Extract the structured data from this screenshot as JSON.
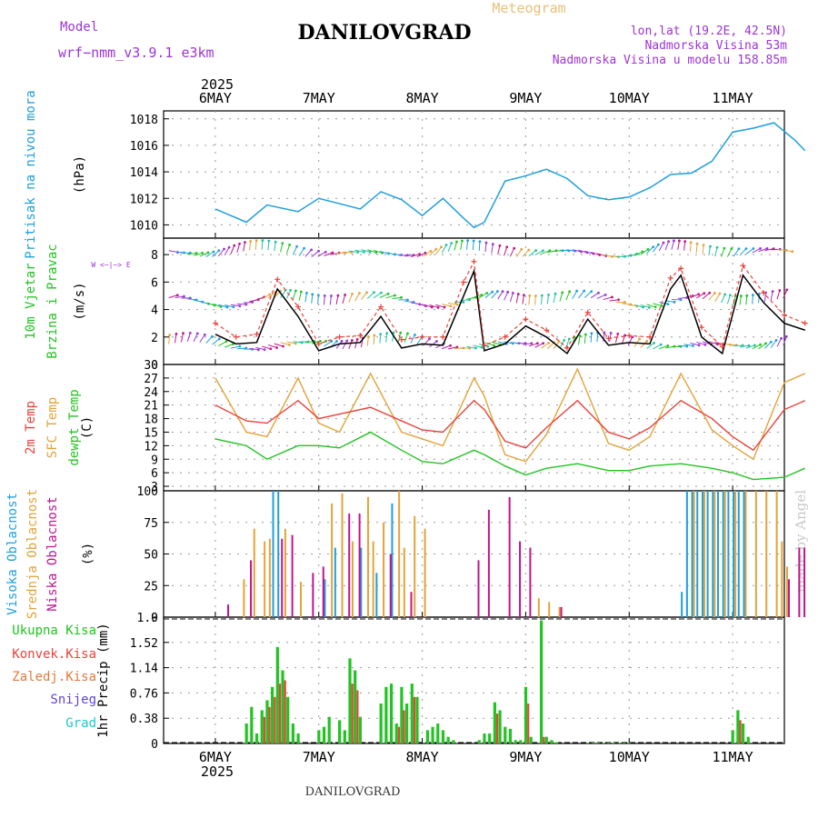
{
  "header": {
    "model_label": "Model",
    "model_name": "wrf−nmm_v3.9.1  e3km",
    "title": "DANILOVGRAD",
    "subtitle": "Meteogram",
    "coords": "lon,lat (19.2E, 42.5N)",
    "altitude": "Nadmorska Visina 53m",
    "model_altitude": "Nadmorska Visina u modelu 158.85m",
    "footer_title": "DANILOVGRAD",
    "watermark": "made by Angel"
  },
  "colors": {
    "blue": "#1e9fdc",
    "red": "#e8433c",
    "orange": "#e2a33a",
    "green": "#22c322",
    "magenta": "#c0148c",
    "purple": "#9c34d6",
    "black": "#000000"
  },
  "chart_data": [
    {
      "type": "line",
      "id": "pressure",
      "ylabel": [
        "Pritisak na nivou mora",
        "(hPa)"
      ],
      "ylim": [
        1009.0,
        1018.6
      ],
      "yticks": [
        1010,
        1012,
        1014,
        1016,
        1018
      ],
      "x_days": [
        0.0,
        0.3,
        0.5,
        0.8,
        1.0,
        1.2,
        1.4,
        1.6,
        1.8,
        2.0,
        2.2,
        2.4,
        2.5,
        2.6,
        2.8,
        3.0,
        3.2,
        3.4,
        3.6,
        3.8,
        4.0,
        4.2,
        4.4,
        4.6,
        4.8,
        5.0,
        5.2,
        5.4,
        5.6,
        5.7
      ],
      "values": [
        1011.2,
        1010.2,
        1011.5,
        1011.0,
        1012.0,
        1011.6,
        1011.2,
        1012.5,
        1011.9,
        1010.7,
        1012.0,
        1010.5,
        1009.8,
        1010.2,
        1013.3,
        1013.7,
        1014.2,
        1013.5,
        1012.2,
        1011.9,
        1012.1,
        1012.8,
        1013.8,
        1013.9,
        1014.8,
        1017.0,
        1017.3,
        1017.7,
        1016.4,
        1015.6
      ]
    },
    {
      "type": "line",
      "id": "wind",
      "ylabel": [
        "10m Vjetar",
        "Brzina i Pravac",
        "(m/s)"
      ],
      "compass_label": "W <−|−> E",
      "ylim": [
        0,
        9.2
      ],
      "yticks": [
        0,
        2,
        4,
        6,
        8
      ],
      "x_days": [
        0.0,
        0.2,
        0.4,
        0.6,
        0.8,
        1.0,
        1.2,
        1.4,
        1.6,
        1.8,
        2.0,
        2.2,
        2.4,
        2.5,
        2.6,
        2.8,
        3.0,
        3.2,
        3.4,
        3.6,
        3.8,
        4.0,
        4.2,
        4.4,
        4.5,
        4.7,
        4.9,
        5.1,
        5.3,
        5.5,
        5.7
      ],
      "series": [
        {
          "name": "wind speed",
          "values": [
            2.2,
            1.5,
            1.6,
            5.5,
            3.5,
            1.0,
            1.5,
            1.6,
            3.5,
            1.2,
            1.5,
            1.4,
            5.0,
            6.8,
            1.0,
            1.5,
            2.8,
            2.0,
            0.8,
            3.3,
            1.4,
            1.6,
            1.5,
            5.5,
            6.5,
            2.0,
            0.8,
            6.5,
            4.5,
            3.0,
            2.5
          ]
        },
        {
          "name": "wind gust",
          "values": [
            3.0,
            2.0,
            2.2,
            6.2,
            4.2,
            1.5,
            2.0,
            2.1,
            4.2,
            1.8,
            2.0,
            2.0,
            6.0,
            7.5,
            1.4,
            2.0,
            3.3,
            2.5,
            1.2,
            3.8,
            1.9,
            2.1,
            2.0,
            6.3,
            7.0,
            2.7,
            1.3,
            7.2,
            5.2,
            3.6,
            3.0
          ]
        }
      ],
      "arrow_rows": [
        1.4,
        4.6,
        8.1
      ]
    },
    {
      "type": "line",
      "id": "temperature",
      "ylabel": [
        "2m Temp",
        "SFC Temp",
        "dewpt Temp",
        "(C)"
      ],
      "ylim": [
        2,
        30
      ],
      "yticks": [
        3,
        6,
        9,
        12,
        15,
        18,
        21,
        24,
        27,
        30
      ],
      "x_days": [
        0.0,
        0.3,
        0.5,
        0.8,
        1.0,
        1.2,
        1.5,
        1.8,
        2.0,
        2.2,
        2.5,
        2.6,
        2.8,
        3.0,
        3.2,
        3.5,
        3.8,
        4.0,
        4.2,
        4.5,
        4.8,
        5.0,
        5.2,
        5.5,
        5.7
      ],
      "series": [
        {
          "name": "2m temp",
          "values": [
            21.0,
            17.5,
            17.0,
            22.0,
            18.0,
            19.0,
            20.5,
            17.5,
            15.5,
            15.0,
            22.0,
            20.0,
            13.0,
            11.5,
            16.0,
            22.0,
            15.0,
            13.5,
            16.0,
            22.0,
            18.0,
            14.0,
            11.0,
            20.0,
            22.0
          ]
        },
        {
          "name": "SFC temp",
          "values": [
            27.0,
            15.0,
            14.0,
            27.0,
            17.0,
            15.0,
            28.0,
            15.0,
            13.5,
            12.0,
            27.0,
            23.0,
            10.0,
            8.5,
            14.5,
            29.0,
            12.5,
            11.0,
            14.0,
            28.0,
            15.5,
            12.0,
            9.0,
            26.0,
            28.0
          ]
        },
        {
          "name": "dewpt temp",
          "values": [
            13.5,
            12.0,
            9.0,
            12.0,
            12.0,
            11.5,
            15.0,
            11.0,
            8.5,
            8.0,
            11.0,
            10.0,
            7.5,
            5.5,
            7.0,
            8.0,
            6.5,
            6.5,
            7.5,
            8.0,
            7.0,
            6.0,
            4.5,
            5.0,
            7.0
          ]
        }
      ]
    },
    {
      "type": "bar",
      "id": "cloud",
      "ylabel": [
        "Visoka Oblacnost",
        "Srednja Oblacnost",
        "Niska Oblacnost",
        "(%)"
      ],
      "ylim": [
        0,
        100
      ],
      "yticks": [
        0,
        25,
        50,
        75,
        100
      ],
      "series": [
        {
          "name": "high",
          "x_days": [
            0.55,
            0.6,
            1.05,
            1.15,
            1.4,
            1.55,
            1.7,
            4.5,
            4.55,
            4.6,
            4.65,
            4.7,
            4.75,
            4.8,
            4.85,
            4.9,
            4.95,
            5.0,
            5.05,
            5.1
          ],
          "values": [
            100,
            100,
            30,
            55,
            55,
            35,
            90,
            20,
            100,
            100,
            100,
            100,
            100,
            100,
            100,
            100,
            100,
            100,
            100,
            100
          ]
        },
        {
          "name": "medium",
          "x_days": [
            0.25,
            0.35,
            0.45,
            0.5,
            0.65,
            0.8,
            1.1,
            1.2,
            1.3,
            1.45,
            1.5,
            1.6,
            1.75,
            1.8,
            1.9,
            2.0,
            3.1,
            3.2,
            3.3,
            4.6,
            4.7,
            4.8,
            4.9,
            5.0,
            5.1,
            5.2,
            5.3,
            5.4,
            5.45,
            5.5
          ],
          "values": [
            30,
            70,
            60,
            62,
            70,
            28,
            90,
            98,
            60,
            95,
            60,
            75,
            100,
            55,
            80,
            70,
            15,
            12,
            8,
            100,
            100,
            100,
            100,
            100,
            100,
            100,
            100,
            100,
            60,
            40
          ]
        },
        {
          "name": "low",
          "x_days": [
            0.08,
            0.3,
            0.6,
            0.7,
            0.9,
            1.0,
            1.25,
            1.35,
            1.65,
            1.85,
            2.5,
            2.6,
            2.8,
            2.9,
            3.0,
            3.3,
            5.5,
            5.6,
            5.65
          ],
          "values": [
            10,
            45,
            62,
            65,
            35,
            40,
            82,
            82,
            50,
            20,
            45,
            85,
            95,
            60,
            55,
            8,
            30,
            55,
            55
          ]
        }
      ]
    },
    {
      "type": "bar",
      "id": "precip",
      "ylabel": [
        "1hr Precip (mm)"
      ],
      "legend": [
        "Ukupna Kisa",
        "Konvek.Kisa",
        "Zaledj.Kisa",
        "Snijeg",
        "Grad"
      ],
      "ylim": [
        0,
        1.9
      ],
      "yticks": [
        0,
        0.38,
        0.76,
        1.14,
        1.52,
        1.9
      ],
      "series": [
        {
          "name": "total rain",
          "x_days": [
            0.3,
            0.35,
            0.4,
            0.45,
            0.5,
            0.55,
            0.6,
            0.65,
            0.7,
            0.75,
            0.8,
            1.0,
            1.05,
            1.1,
            1.2,
            1.25,
            1.3,
            1.35,
            1.4,
            1.6,
            1.65,
            1.7,
            1.75,
            1.8,
            1.85,
            1.9,
            1.95,
            2.05,
            2.1,
            2.15,
            2.2,
            2.25,
            2.3,
            2.55,
            2.6,
            2.65,
            2.7,
            2.75,
            2.8,
            2.85,
            2.9,
            2.95,
            3.0,
            3.05,
            3.15,
            3.2,
            3.25,
            3.3,
            3.6,
            3.65,
            3.7,
            3.75,
            3.8,
            3.85,
            3.9,
            3.95,
            4.0,
            5.0,
            5.05,
            5.1,
            5.15
          ],
          "values": [
            0.3,
            0.55,
            0.15,
            0.5,
            0.65,
            0.85,
            1.45,
            1.1,
            0.7,
            0.3,
            0.15,
            0.2,
            0.25,
            0.4,
            0.35,
            0.2,
            1.28,
            1.1,
            0.4,
            0.6,
            0.85,
            0.9,
            0.3,
            0.85,
            0.6,
            0.9,
            0.7,
            0.2,
            0.25,
            0.3,
            0.2,
            0.1,
            0.05,
            0.05,
            0.15,
            0.15,
            0.62,
            0.5,
            0.25,
            0.22,
            0.05,
            0.05,
            0.85,
            0.1,
            1.85,
            0.1,
            0.05,
            0.02,
            0.01,
            0.01,
            0.01,
            0.01,
            0.01,
            0.01,
            0.01,
            0.01,
            0.01,
            0.2,
            0.5,
            0.3,
            0.1
          ]
        },
        {
          "name": "convective rain",
          "x_days": [
            0.45,
            0.5,
            0.55,
            0.6,
            0.65,
            1.3,
            1.35,
            1.75,
            1.8,
            1.9,
            2.7,
            3.0,
            3.15,
            5.05
          ],
          "values": [
            0.4,
            0.55,
            0.7,
            0.9,
            0.95,
            0.9,
            0.8,
            0.25,
            0.5,
            0.7,
            0.45,
            0.6,
            0.1,
            0.35
          ]
        }
      ]
    }
  ],
  "x_axis": {
    "days": [
      "6MAY",
      "7MAY",
      "8MAY",
      "9MAY",
      "10MAY",
      "11MAY"
    ],
    "year": "2025",
    "range_days": [
      -0.5,
      5.5
    ]
  }
}
